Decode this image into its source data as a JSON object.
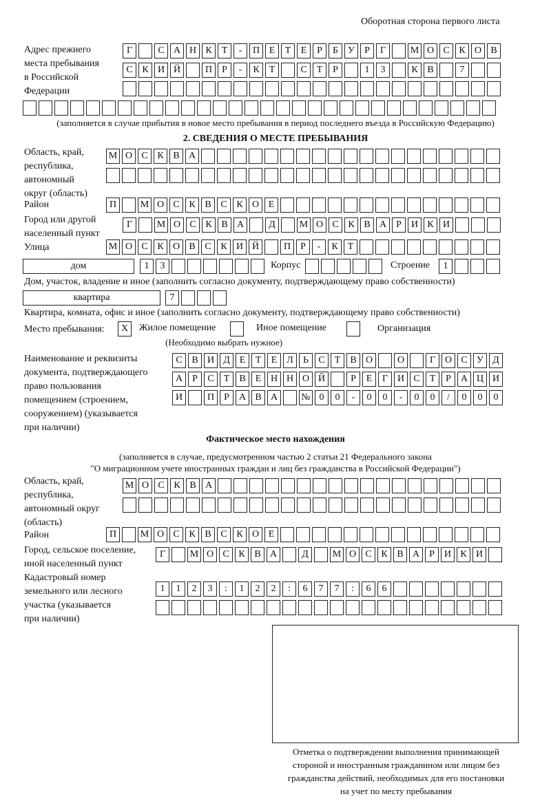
{
  "header": {
    "side_note": "Оборотная сторона первого листа"
  },
  "previous_address": {
    "label": "Адрес прежнего\nместа пребывания\nв Российской\nФедерации",
    "rows": [
      "Г САНКТ-ПЕТЕРБУРГ МОСКОВ",
      "СКИЙ ПР-КТ СТР 13 КВ 7",
      "",
      ""
    ],
    "note": "(заполняется в случае прибытия в новое место пребывания в период последнего въезда в Российскую Федерацию)"
  },
  "section2": {
    "title": "2. СВЕДЕНИЯ О МЕСТЕ ПРЕБЫВАНИЯ",
    "region_label": "Область, край,\nреспублика,\nавтономный\nокруг (область)",
    "region_rows": [
      "МОСКВА",
      ""
    ],
    "district_label": "Район",
    "district": "П МОСКВСКОЕ",
    "city_label": "Город или другой\nнаселенный пункт",
    "city": "Г МОСКВА Д МОСКВАРИКИ",
    "street_label": "Улица",
    "street": "МОСКОВСКИЙ ПР-КТ",
    "house_type": "дом",
    "house_number": "13",
    "korpus_label": "Корпус",
    "korpus": "",
    "building_label": "Строение",
    "building": "1",
    "house_note": "Дом, участок, владение и иное (заполнить согласно документу, подтверждающему право собственности)",
    "apartment_type": "квартира",
    "apartment_number": "7",
    "apartment_note": "Квартира, комната, офис и иное (заполнить согласно документу, подтверждающему право собственности)",
    "place_label": "Место пребывания:",
    "place_options": [
      {
        "label": "Жилое помещение",
        "mark": "X"
      },
      {
        "label": "Иное помещение",
        "mark": ""
      },
      {
        "label": "Организация",
        "mark": ""
      }
    ],
    "place_note": "(Необходимо выбрать нужное)",
    "document_label": "Наименование и реквизиты\nдокумента, подтверждающего\nправо пользования\nпомещением (строением,\nсооружением) (указывается\nпри наличии)",
    "document_rows": [
      "СВИДЕТЕЛЬСТВО О ГОСУД",
      "АРСТВЕННОЙ РЕГИСТРАЦИ",
      "И ПРАВА №00-00-00/000"
    ]
  },
  "actual": {
    "title": "Фактическое место нахождения",
    "note1": "(заполняется в случае, предусмотренном частью 2 статьи 21 Федерального закона",
    "note2": "\"О миграционном учете иностранных граждан и лиц без гражданства в Российской Федерации\")",
    "region_label": "Область, край,\nреспублика,\nавтономный округ\n(область)",
    "region_rows": [
      "МОСКВА",
      ""
    ],
    "district_label": "Район",
    "district": "П МОСКВСКОЕ",
    "city_label": "Город, сельское поселение,\nиной населенный пункт",
    "city": "Г МОСКВА Д МОСКВАРИКИ",
    "cadastral_label": "Кадастровый номер\nземельного или лесного\nучастка (указывается\nпри наличии)",
    "cadastral_rows": [
      "1123:122:677:66",
      ""
    ]
  },
  "stamp": {
    "caption": "Отметка о подтверждении выполнения принимающей\nстороной и иностранным гражданином или лицом без\nгражданства действий, необходимых для его постановки\nна учет по месту пребывания"
  }
}
